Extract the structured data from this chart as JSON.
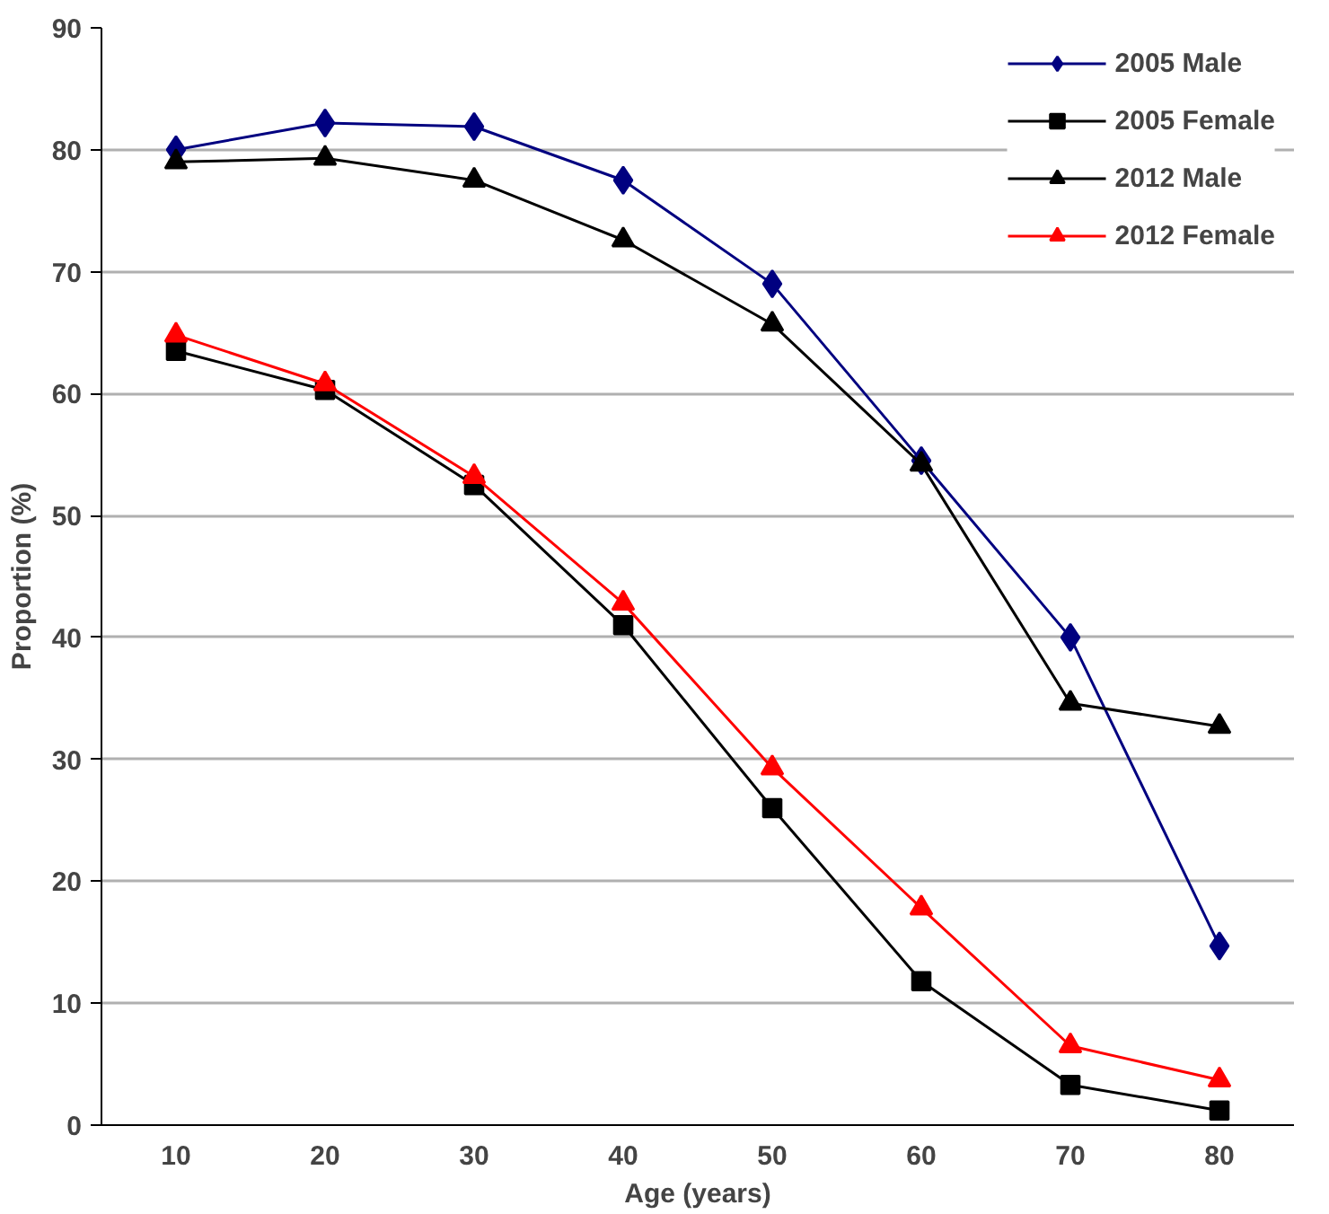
{
  "chart_data": {
    "type": "line",
    "xlabel": "Age (years)",
    "ylabel": "Proportion (%)",
    "categories": [
      "10",
      "20",
      "30",
      "40",
      "50",
      "60",
      "70",
      "80"
    ],
    "series": [
      {
        "name": "2005 Male",
        "color": "#000080",
        "marker": "diamond",
        "values": [
          80,
          82.2,
          81.9,
          77.5,
          69,
          54.5,
          40,
          14.7
        ]
      },
      {
        "name": "2005 Female",
        "color": "#000000",
        "marker": "square",
        "values": [
          63.5,
          60.3,
          52.5,
          41,
          26,
          11.8,
          3.3,
          1.2
        ]
      },
      {
        "name": "2012 Male",
        "color": "#000000",
        "marker": "triangle",
        "values": [
          79,
          79.3,
          77.5,
          72.6,
          65.7,
          54.2,
          34.6,
          32.7
        ]
      },
      {
        "name": "2012 Female",
        "color": "#ff0000",
        "marker": "triangle",
        "values": [
          64.8,
          60.8,
          53.2,
          42.8,
          29.3,
          17.8,
          6.5,
          3.7
        ]
      }
    ],
    "ylim": [
      0,
      90
    ],
    "yticks": [
      0,
      10,
      20,
      30,
      40,
      50,
      60,
      70,
      80,
      90
    ],
    "grid": "y",
    "legend": "top right",
    "line_style": "solid"
  }
}
